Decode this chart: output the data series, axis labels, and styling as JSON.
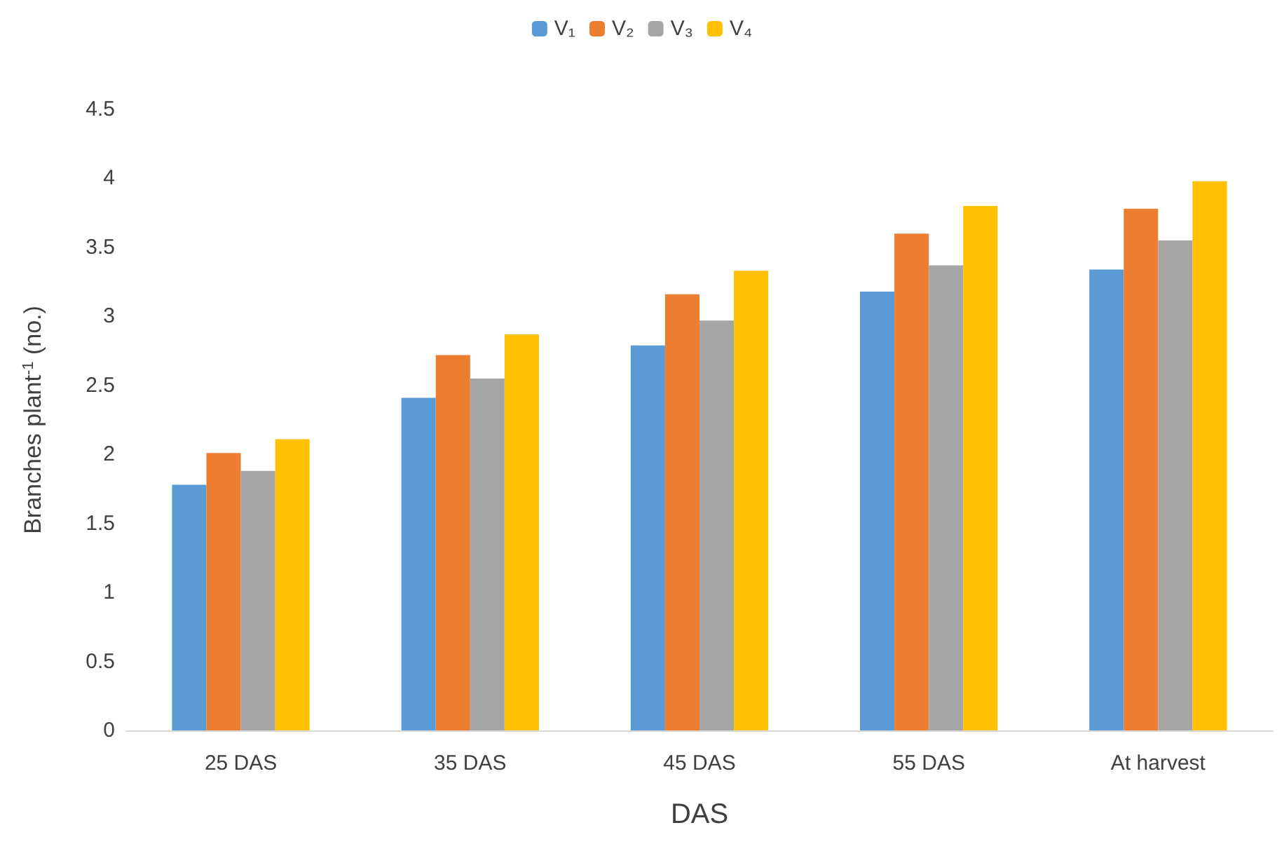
{
  "chart_data": {
    "type": "bar",
    "xlabel": "DAS",
    "ylabel": "Branches plant$^{-1}$ (no.)",
    "categories": [
      "25 DAS",
      "35 DAS",
      "45 DAS",
      "55 DAS",
      "At harvest"
    ],
    "series": [
      {
        "name": "V₁",
        "color": "#5b9bd5",
        "values": [
          1.78,
          2.41,
          2.79,
          3.18,
          3.34
        ]
      },
      {
        "name": "V₂",
        "color": "#ed7d31",
        "values": [
          2.01,
          2.72,
          3.16,
          3.6,
          3.78
        ]
      },
      {
        "name": "V₃",
        "color": "#a5a5a5",
        "values": [
          1.88,
          2.55,
          2.97,
          3.37,
          3.55
        ]
      },
      {
        "name": "V₄",
        "color": "#ffc000",
        "values": [
          2.11,
          2.87,
          3.33,
          3.8,
          3.98
        ]
      }
    ],
    "ylim": [
      0,
      4.5
    ],
    "yticks": [
      0,
      0.5,
      1,
      1.5,
      2,
      2.5,
      3,
      3.5,
      4,
      4.5
    ],
    "legend": "top"
  }
}
